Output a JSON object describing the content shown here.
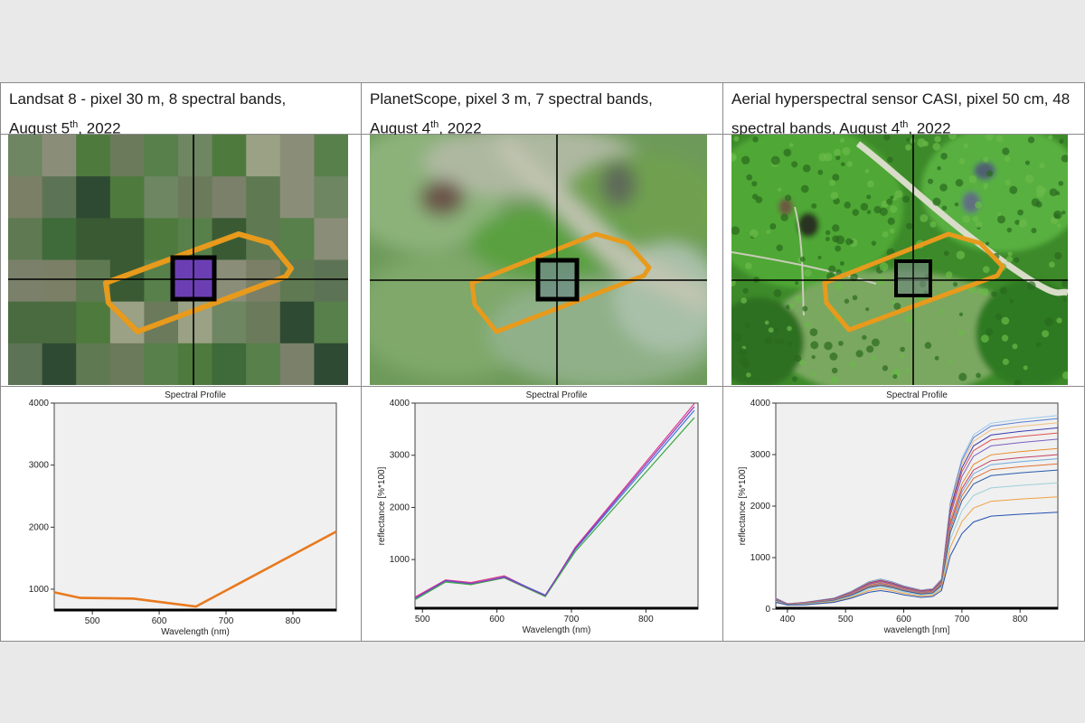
{
  "panels": [
    {
      "title_line1": "Landsat 8 - pixel 30 m, 8 spectral bands,",
      "title_line2_pre": "August 5",
      "title_line2_sup": "th",
      "title_line2_post": ", 2022"
    },
    {
      "title_line1": "PlanetScope, pixel 3 m, 7 spectral bands,",
      "title_line2_pre": "August 4",
      "title_line2_sup": "th",
      "title_line2_post": ", 2022"
    },
    {
      "title_line1": "Aerial hyperspectral sensor CASI, pixel 50 cm, 48",
      "title_line2_pre": "spectral bands, August 4",
      "title_line2_sup": "th",
      "title_line2_post": ", 2022"
    }
  ],
  "colors": {
    "polygon": "#e89a1c",
    "landsat_pixel": "#6b3fb3",
    "landsat_line": "#e8791e"
  },
  "chart_data": [
    {
      "type": "line",
      "title": "Spectral Profile",
      "xlabel": "Wavelength (nm)",
      "ylabel": "",
      "xlim": [
        443,
        865
      ],
      "ylim": [
        650,
        4000
      ],
      "xticks": [
        500,
        600,
        700,
        800
      ],
      "yticks": [
        1000,
        2000,
        3000,
        4000
      ],
      "series": [
        {
          "color": "#e8791e",
          "x": [
            443,
            482,
            561,
            655,
            865
          ],
          "y": [
            950,
            860,
            850,
            720,
            1930
          ]
        }
      ]
    },
    {
      "type": "line",
      "title": "Spectral Profile",
      "xlabel": "Wavelength (nm)",
      "ylabel": "reflectance [%*100]",
      "xlim": [
        490,
        870
      ],
      "ylim": [
        50,
        4000
      ],
      "xticks": [
        500,
        600,
        700,
        800
      ],
      "yticks": [
        1000,
        2000,
        3000,
        4000
      ],
      "series": [
        {
          "color": "#e03a8a",
          "x": [
            490,
            531,
            565,
            610,
            665,
            705,
            865
          ],
          "y": [
            280,
            610,
            560,
            690,
            300,
            1230,
            3990
          ]
        },
        {
          "color": "#3a7bd5",
          "x": [
            490,
            531,
            565,
            610,
            665,
            705,
            865
          ],
          "y": [
            250,
            590,
            530,
            670,
            320,
            1190,
            3860
          ]
        },
        {
          "color": "#3aa845",
          "x": [
            490,
            531,
            565,
            610,
            665,
            705,
            865
          ],
          "y": [
            230,
            570,
            520,
            650,
            290,
            1150,
            3720
          ]
        },
        {
          "color": "#8a3ac2",
          "x": [
            490,
            531,
            565,
            610,
            665,
            705,
            865
          ],
          "y": [
            260,
            600,
            540,
            660,
            310,
            1210,
            3930
          ]
        }
      ]
    },
    {
      "type": "line",
      "title": "Spectral Profile",
      "xlabel": "wavelength [nm]",
      "ylabel": "reflectance [%*100]",
      "xlim": [
        380,
        865
      ],
      "ylim": [
        0,
        4000
      ],
      "xticks": [
        400,
        500,
        600,
        700,
        800
      ],
      "yticks": [
        0,
        1000,
        2000,
        3000,
        4000
      ],
      "profile_x": [
        380,
        400,
        430,
        480,
        510,
        540,
        560,
        580,
        600,
        630,
        650,
        665,
        680,
        700,
        720,
        750,
        800,
        865
      ],
      "profile_shape": [
        0.08,
        0.04,
        0.05,
        0.08,
        0.13,
        0.2,
        0.22,
        0.2,
        0.17,
        0.14,
        0.15,
        0.22,
        0.55,
        0.78,
        0.9,
        0.96,
        0.98,
        1.0
      ],
      "series": [
        {
          "color": "#9ec7ea",
          "peak": 3760
        },
        {
          "color": "#5a7fd0",
          "peak": 3700
        },
        {
          "color": "#f0c080",
          "peak": 3620
        },
        {
          "color": "#3b3bb0",
          "peak": 3520
        },
        {
          "color": "#e05050",
          "peak": 3420
        },
        {
          "color": "#7a5fc0",
          "peak": 3300
        },
        {
          "color": "#e88a2a",
          "peak": 3120
        },
        {
          "color": "#c04060",
          "peak": 3000
        },
        {
          "color": "#6fa8dc",
          "peak": 2920
        },
        {
          "color": "#e07030",
          "peak": 2820
        },
        {
          "color": "#2a5aa8",
          "peak": 2700
        },
        {
          "color": "#9ad0d8",
          "peak": 2450
        },
        {
          "color": "#f0a040",
          "peak": 2180
        },
        {
          "color": "#2450b0",
          "peak": 1880
        }
      ]
    }
  ]
}
